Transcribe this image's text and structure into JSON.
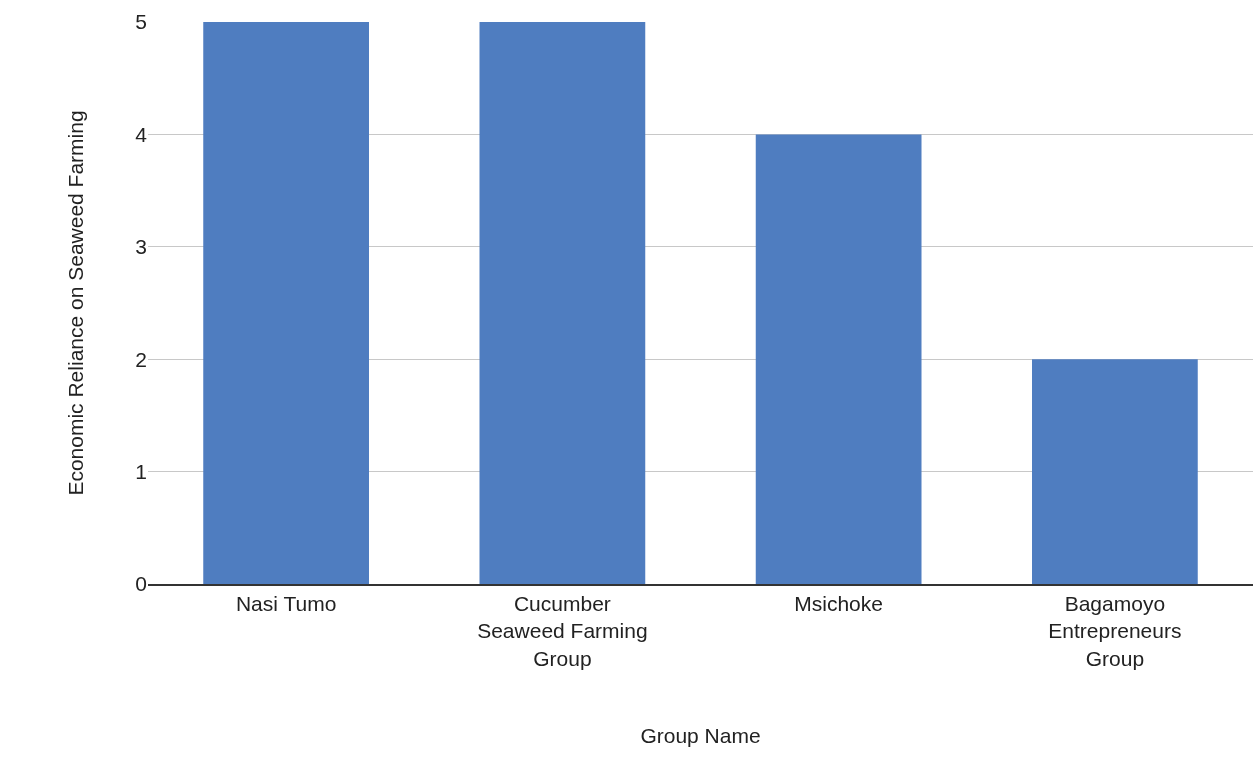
{
  "chart_data": {
    "type": "bar",
    "xlabel": "Group Name",
    "ylabel": "Economic Reliance on Seaweed Farming",
    "categories": [
      "Nasi Tumo",
      "Cucumber Seaweed Farming Group",
      "Msichoke",
      "Bagamoyo Entrepreneurs Group"
    ],
    "values": [
      5,
      5,
      4,
      2
    ],
    "color": "#4f7dc0",
    "ylim": [
      0,
      5
    ],
    "yticks": [
      0,
      1,
      2,
      3,
      4,
      5
    ],
    "grid": "y",
    "legend": false
  }
}
